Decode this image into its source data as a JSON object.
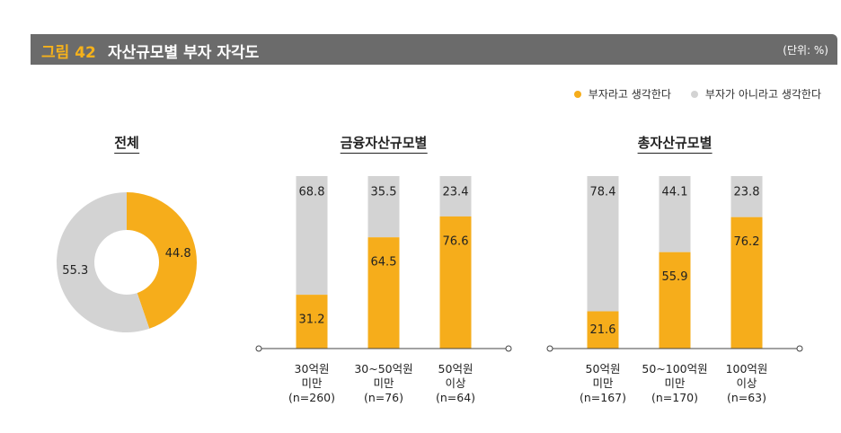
{
  "header": {
    "figure_number": "그림 42",
    "title": "자산규모별 부자 자각도",
    "unit": "(단위: %)"
  },
  "legend": {
    "items": [
      {
        "label": "부자라고 생각한다",
        "color": "#f6ad1b"
      },
      {
        "label": "부자가 아니라고 생각한다",
        "color": "#d3d3d3"
      }
    ]
  },
  "colors": {
    "rich": "#f6ad1b",
    "not_rich": "#d3d3d3"
  },
  "chart_data": [
    {
      "type": "pie",
      "title": "전체",
      "variant": "donut",
      "slices": [
        {
          "label": "부자라고 생각한다",
          "value": 44.8
        },
        {
          "label": "부자가 아니라고 생각한다",
          "value": 55.3
        }
      ]
    },
    {
      "type": "bar",
      "stacked": true,
      "title": "금융자산규모별",
      "categories": [
        {
          "line1": "30억원",
          "line2": "미만",
          "line3": "(n=260)"
        },
        {
          "line1": "30~50억원",
          "line2": "미만",
          "line3": "(n=76)"
        },
        {
          "line1": "50억원",
          "line2": "이상",
          "line3": "(n=64)"
        }
      ],
      "series": [
        {
          "name": "부자라고 생각한다",
          "values": [
            31.2,
            64.5,
            76.6
          ]
        },
        {
          "name": "부자가 아니라고 생각한다",
          "values": [
            68.8,
            35.5,
            23.4
          ]
        }
      ],
      "ylim": [
        0,
        100
      ]
    },
    {
      "type": "bar",
      "stacked": true,
      "title": "총자산규모별",
      "categories": [
        {
          "line1": "50억원",
          "line2": "미만",
          "line3": "(n=167)"
        },
        {
          "line1": "50~100억원",
          "line2": "미만",
          "line3": "(n=170)"
        },
        {
          "line1": "100억원",
          "line2": "이상",
          "line3": "(n=63)"
        }
      ],
      "series": [
        {
          "name": "부자라고 생각한다",
          "values": [
            21.6,
            55.9,
            76.2
          ]
        },
        {
          "name": "부자가 아니라고 생각한다",
          "values": [
            78.4,
            44.1,
            23.8
          ]
        }
      ],
      "ylim": [
        0,
        100
      ]
    }
  ]
}
